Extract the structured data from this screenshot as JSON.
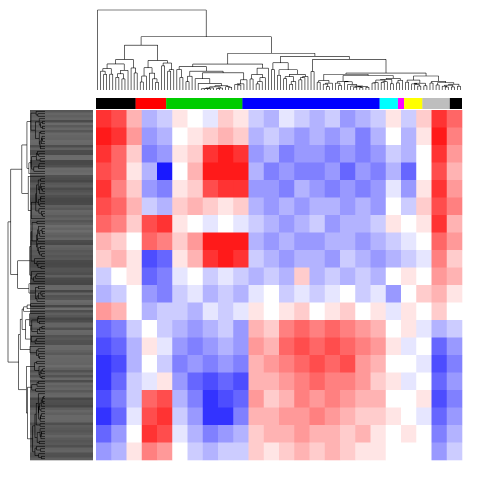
{
  "chart_data": {
    "type": "heatmap",
    "colorscale": [
      "#0000ff",
      "#ffffff",
      "#ff0000"
    ],
    "zlim": [
      -1,
      1
    ],
    "column_groups": [
      {
        "color": "#000000",
        "size": 13
      },
      {
        "color": "#ff0000",
        "size": 10
      },
      {
        "color": "#00cc00",
        "size": 25
      },
      {
        "color": "#0000ff",
        "size": 45
      },
      {
        "color": "#00ffff",
        "size": 6
      },
      {
        "color": "#ff00ff",
        "size": 2
      },
      {
        "color": "#ffff00",
        "size": 6
      },
      {
        "color": "#bebebe",
        "size": 9
      },
      {
        "color": "#000000",
        "size": 4
      }
    ],
    "z": [
      [
        0.8,
        0.7,
        0.3,
        -0.3,
        -0.2,
        0.1,
        0,
        -0.1,
        0.2,
        0.1,
        -0.2,
        -0.3,
        -0.1,
        -0.2,
        -0.3,
        -0.2,
        -0.4,
        -0.3,
        -0.2,
        0.1,
        -0.2,
        0.2,
        0.8,
        0.6
      ],
      [
        0.9,
        0.8,
        0.4,
        -0.4,
        -0.3,
        0,
        0.1,
        0.2,
        0.3,
        0.2,
        -0.3,
        -0.2,
        -0.3,
        -0.4,
        -0.3,
        -0.4,
        -0.3,
        -0.5,
        -0.3,
        0,
        -0.3,
        0.1,
        0.9,
        0.5
      ],
      [
        0.8,
        0.6,
        0.2,
        -0.5,
        -0.4,
        0.1,
        0.2,
        0.8,
        0.9,
        0.8,
        -0.4,
        -0.3,
        -0.5,
        -0.4,
        -0.4,
        -0.5,
        -0.4,
        -0.5,
        -0.4,
        -0.2,
        -0.3,
        0,
        0.8,
        0.4
      ],
      [
        0.7,
        0.6,
        0.1,
        -0.3,
        -0.9,
        0,
        0.3,
        0.9,
        0.9,
        0.9,
        -0.3,
        -0.5,
        -0.4,
        -0.5,
        -0.5,
        -0.4,
        -0.6,
        -0.4,
        -0.5,
        -0.3,
        -0.6,
        0,
        0.7,
        0.3
      ],
      [
        0.8,
        0.5,
        0.2,
        -0.4,
        -0.5,
        0.1,
        0.2,
        0.7,
        0.8,
        0.8,
        -0.4,
        -0.4,
        -0.5,
        -0.3,
        -0.4,
        -0.5,
        -0.4,
        -0.5,
        -0.4,
        -0.1,
        -0.4,
        0.1,
        0.8,
        0.4
      ],
      [
        0.7,
        0.6,
        0.3,
        -0.2,
        -0.3,
        0.2,
        0.3,
        0.2,
        0.1,
        0.2,
        -0.3,
        -0.4,
        -0.3,
        -0.4,
        -0.3,
        -0.3,
        -0.4,
        -0.3,
        -0.4,
        0,
        -0.2,
        0.2,
        0.7,
        0.5
      ],
      [
        0.6,
        0.5,
        0.2,
        0.7,
        0.8,
        0.1,
        0,
        -0.1,
        0,
        -0.1,
        -0.2,
        -0.3,
        -0.4,
        -0.3,
        -0.2,
        -0.4,
        -0.3,
        -0.3,
        -0.2,
        0.1,
        0,
        0.1,
        0.8,
        0.3
      ],
      [
        0.3,
        0.2,
        0,
        0.6,
        0.5,
        0.2,
        0.4,
        0.9,
        0.9,
        0.9,
        -0.3,
        -0.4,
        -0.3,
        -0.4,
        -0.4,
        -0.3,
        -0.3,
        -0.4,
        -0.3,
        -0.2,
        -0.1,
        0,
        0.6,
        0.4
      ],
      [
        0.2,
        0.3,
        0.1,
        -0.7,
        -0.6,
        0.1,
        0.3,
        0.8,
        0.9,
        0.8,
        -0.2,
        -0.3,
        -0.4,
        -0.3,
        -0.3,
        -0.4,
        -0.2,
        -0.3,
        -0.4,
        -0.3,
        -0.2,
        -0.1,
        0.5,
        0.2
      ],
      [
        -0.2,
        0,
        0.1,
        -0.6,
        -0.5,
        -0.1,
        0,
        -0.2,
        -0.1,
        -0.2,
        -0.3,
        -0.2,
        -0.3,
        0.2,
        -0.3,
        -0.2,
        -0.3,
        -0.2,
        -0.3,
        0,
        0.1,
        0,
        0.4,
        0.3
      ],
      [
        -0.3,
        -0.2,
        0,
        -0.4,
        -0.5,
        -0.2,
        -0.1,
        -0.3,
        -0.2,
        -0.3,
        -0.1,
        0,
        -0.2,
        -0.1,
        -0.2,
        -0.1,
        0,
        -0.2,
        -0.1,
        -0.4,
        0,
        0.2,
        0.3,
        0.1
      ],
      [
        0.4,
        0.3,
        0,
        -0.3,
        -0.2,
        -0.2,
        -0.3,
        -0.1,
        -0.2,
        -0.1,
        0.1,
        0,
        0.1,
        0.2,
        0,
        0.1,
        0.2,
        0,
        0.1,
        -0.1,
        0.1,
        0,
        0.2,
        0
      ],
      [
        -0.6,
        -0.5,
        -0.2,
        0,
        -0.2,
        -0.3,
        -0.4,
        -0.3,
        -0.2,
        -0.4,
        0.3,
        0.2,
        0.5,
        0.6,
        0.5,
        0.6,
        0.5,
        0.4,
        0.3,
        0,
        0.1,
        -0.1,
        -0.3,
        -0.2
      ],
      [
        -0.7,
        -0.6,
        -0.3,
        0.1,
        -0.1,
        -0.4,
        -0.5,
        -0.4,
        -0.3,
        -0.4,
        0.4,
        0.3,
        0.6,
        0.7,
        0.6,
        0.7,
        0.6,
        0.5,
        0.4,
        0.1,
        -0.1,
        0,
        -0.6,
        -0.4
      ],
      [
        -0.8,
        -0.7,
        -0.3,
        0,
        -0.2,
        -0.5,
        -0.4,
        -0.5,
        -0.4,
        -0.5,
        0.3,
        0.4,
        0.5,
        0.6,
        0.7,
        0.6,
        0.7,
        0.4,
        0.3,
        0,
        0,
        -0.1,
        -0.7,
        -0.5
      ],
      [
        -0.8,
        -0.6,
        -0.2,
        -0.1,
        0.1,
        -0.4,
        -0.6,
        -0.7,
        -0.6,
        -0.7,
        0.3,
        0.3,
        0.4,
        0.5,
        0.6,
        0.5,
        0.5,
        0.4,
        0.2,
        0.1,
        -0.1,
        0,
        -0.6,
        -0.4
      ],
      [
        -0.7,
        -0.5,
        -0.2,
        0.6,
        0.7,
        -0.3,
        -0.5,
        -0.8,
        -0.7,
        -0.6,
        0.4,
        0.2,
        0.3,
        0.5,
        0.4,
        0.5,
        0.4,
        0.3,
        0.3,
        0,
        0,
        0.1,
        -0.7,
        -0.5
      ],
      [
        -0.8,
        -0.6,
        -0.1,
        0.7,
        0.8,
        -0.2,
        -0.4,
        -0.8,
        -0.8,
        -0.5,
        0.3,
        0.3,
        0.4,
        0.4,
        0.5,
        0.4,
        0.3,
        0.2,
        0.2,
        0.1,
        0,
        -0.1,
        -0.6,
        -0.4
      ],
      [
        -0.6,
        -0.4,
        0,
        0.8,
        0.7,
        -0.1,
        -0.3,
        -0.5,
        -0.4,
        -0.3,
        0.2,
        0.3,
        0.3,
        0.4,
        0.3,
        0.3,
        0.2,
        0.3,
        0.1,
        0,
        0.1,
        0,
        -0.5,
        -0.3
      ],
      [
        -0.4,
        -0.3,
        0.1,
        0.5,
        0.4,
        0,
        -0.2,
        -0.3,
        -0.2,
        -0.2,
        0.2,
        0.1,
        0.2,
        0.3,
        0.2,
        0.3,
        0.2,
        0.1,
        0.1,
        0,
        0,
        0,
        -0.4,
        -0.2
      ]
    ]
  }
}
